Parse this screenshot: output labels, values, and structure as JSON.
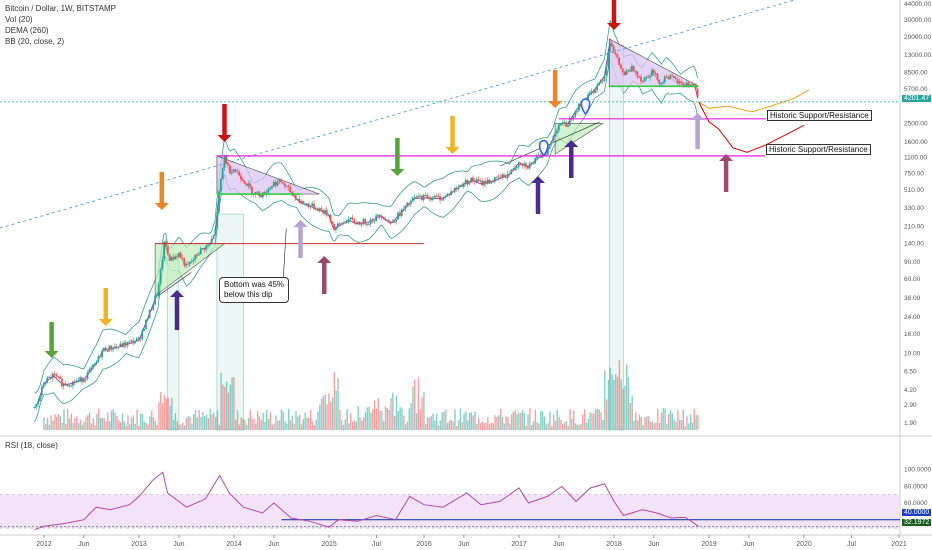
{
  "legend": {
    "title": "Bitcoin / Dollar, 1W, BITSTAMP",
    "vol": "Vol (20)",
    "dema": "DEMA (260)",
    "bb": "BB (20, close, 2)",
    "rsi": "RSI (18, close)"
  },
  "annotations": {
    "support1": "Historic Support/Resistance",
    "support2": "Historic Support/Resistance",
    "bottom_note_line1": "Bottom was 45%",
    "bottom_note_line2": "below this dip"
  },
  "price_badge": "4201.47",
  "rsi_badges": {
    "line": "40.0000",
    "current": "32.1972"
  },
  "colors": {
    "up": "#26a69a",
    "down": "#ef5350",
    "bb": "#3a9c8a",
    "dema": "#9c27b0",
    "magenta": "#e91ee6",
    "green_line": "#2ecc40",
    "red_line": "#d32f2f",
    "trend": "#4a8fd0",
    "orange_proj": "#f0a020",
    "red_proj": "#e00000",
    "rsi_line": "#b04aa6",
    "rsi_band": "#f0dcf7",
    "arrow_green": "#55a33b",
    "arrow_yellow": "#f0b323",
    "arrow_orange": "#e8862a",
    "arrow_red": "#c91313",
    "arrow_lav": "#b5a3d6",
    "arrow_purple": "#4a2c8c",
    "arrow_maroon": "#9a4a6e"
  },
  "chart_data": {
    "type": "candlestick",
    "title": "Bitcoin / Dollar, 1W, BITSTAMP",
    "scale": "log",
    "ylim": [
      1.6,
      44000
    ],
    "y_ticks": [
      "44000.00",
      "30000.00",
      "20000.00",
      "13000.00",
      "8500.00",
      "5700.00",
      "2500.00",
      "1600.00",
      "1100.00",
      "750.00",
      "510.00",
      "330.00",
      "210.00",
      "140.00",
      "90.00",
      "60.00",
      "38.00",
      "24.00",
      "16.00",
      "10.00",
      "6.50",
      "4.20",
      "2.90",
      "1.90"
    ],
    "x_ticks": [
      {
        "label": "2012",
        "t": 2012.0
      },
      {
        "label": "Jun",
        "t": 2012.42
      },
      {
        "label": "2013",
        "t": 2013.0
      },
      {
        "label": "Jun",
        "t": 2013.42
      },
      {
        "label": "2014",
        "t": 2014.0
      },
      {
        "label": "Jun",
        "t": 2014.42
      },
      {
        "label": "2015",
        "t": 2015.0
      },
      {
        "label": "Jul",
        "t": 2015.5
      },
      {
        "label": "2016",
        "t": 2016.0
      },
      {
        "label": "Jun",
        "t": 2016.42
      },
      {
        "label": "2017",
        "t": 2017.0
      },
      {
        "label": "Jun",
        "t": 2017.42
      },
      {
        "label": "2018",
        "t": 2018.0
      },
      {
        "label": "Jun",
        "t": 2018.42
      },
      {
        "label": "2019",
        "t": 2019.0
      },
      {
        "label": "Jun",
        "t": 2019.42
      },
      {
        "label": "2020",
        "t": 2020.0
      },
      {
        "label": "Jul",
        "t": 2020.5
      },
      {
        "label": "2021",
        "t": 2021.0
      }
    ],
    "price_path": [
      [
        2011.68,
        10
      ],
      [
        2011.75,
        6.5
      ],
      [
        2011.8,
        4.5
      ],
      [
        2011.87,
        2.5
      ],
      [
        2011.93,
        3
      ],
      [
        2012.0,
        5
      ],
      [
        2012.1,
        6
      ],
      [
        2012.2,
        4.8
      ],
      [
        2012.3,
        5
      ],
      [
        2012.42,
        5.5
      ],
      [
        2012.55,
        8
      ],
      [
        2012.62,
        11
      ],
      [
        2012.7,
        11.5
      ],
      [
        2012.8,
        12
      ],
      [
        2012.9,
        13
      ],
      [
        2013.0,
        14
      ],
      [
        2013.1,
        25
      ],
      [
        2013.2,
        45
      ],
      [
        2013.27,
        150
      ],
      [
        2013.3,
        110
      ],
      [
        2013.33,
        95
      ],
      [
        2013.42,
        110
      ],
      [
        2013.5,
        80
      ],
      [
        2013.55,
        90
      ],
      [
        2013.65,
        120
      ],
      [
        2013.75,
        140
      ],
      [
        2013.8,
        180
      ],
      [
        2013.84,
        450
      ],
      [
        2013.9,
        1150
      ],
      [
        2013.95,
        800
      ],
      [
        2014.0,
        850
      ],
      [
        2014.1,
        650
      ],
      [
        2014.2,
        480
      ],
      [
        2014.3,
        450
      ],
      [
        2014.42,
        600
      ],
      [
        2014.5,
        620
      ],
      [
        2014.6,
        480
      ],
      [
        2014.7,
        380
      ],
      [
        2014.8,
        350
      ],
      [
        2014.9,
        320
      ],
      [
        2015.0,
        280
      ],
      [
        2015.05,
        200
      ],
      [
        2015.2,
        250
      ],
      [
        2015.3,
        230
      ],
      [
        2015.42,
        240
      ],
      [
        2015.55,
        280
      ],
      [
        2015.65,
        230
      ],
      [
        2015.8,
        330
      ],
      [
        2015.9,
        420
      ],
      [
        2016.0,
        430
      ],
      [
        2016.2,
        420
      ],
      [
        2016.42,
        600
      ],
      [
        2016.5,
        650
      ],
      [
        2016.6,
        600
      ],
      [
        2016.75,
        650
      ],
      [
        2016.9,
        750
      ],
      [
        2017.0,
        1000
      ],
      [
        2017.1,
        900
      ],
      [
        2017.2,
        1100
      ],
      [
        2017.3,
        1300
      ],
      [
        2017.42,
        2500
      ],
      [
        2017.5,
        2400
      ],
      [
        2017.6,
        3500
      ],
      [
        2017.7,
        4500
      ],
      [
        2017.8,
        5800
      ],
      [
        2017.9,
        8000
      ],
      [
        2017.96,
        19000
      ],
      [
        2018.0,
        14000
      ],
      [
        2018.1,
        8000
      ],
      [
        2018.2,
        9500
      ],
      [
        2018.3,
        7000
      ],
      [
        2018.4,
        8800
      ],
      [
        2018.5,
        6500
      ],
      [
        2018.55,
        8000
      ],
      [
        2018.7,
        6500
      ],
      [
        2018.85,
        6400
      ],
      [
        2018.89,
        4200
      ]
    ],
    "rsi_path": [
      [
        2011.9,
        28
      ],
      [
        2012.0,
        32
      ],
      [
        2012.2,
        35
      ],
      [
        2012.42,
        40
      ],
      [
        2012.55,
        55
      ],
      [
        2012.7,
        52
      ],
      [
        2012.9,
        58
      ],
      [
        2013.0,
        68
      ],
      [
        2013.15,
        88
      ],
      [
        2013.25,
        97
      ],
      [
        2013.3,
        72
      ],
      [
        2013.5,
        55
      ],
      [
        2013.7,
        65
      ],
      [
        2013.85,
        93
      ],
      [
        2013.95,
        72
      ],
      [
        2014.1,
        55
      ],
      [
        2014.3,
        48
      ],
      [
        2014.42,
        60
      ],
      [
        2014.6,
        42
      ],
      [
        2014.8,
        38
      ],
      [
        2015.0,
        31
      ],
      [
        2015.1,
        40
      ],
      [
        2015.3,
        38
      ],
      [
        2015.5,
        45
      ],
      [
        2015.7,
        40
      ],
      [
        2015.85,
        68
      ],
      [
        2016.0,
        58
      ],
      [
        2016.2,
        55
      ],
      [
        2016.45,
        72
      ],
      [
        2016.6,
        58
      ],
      [
        2016.8,
        62
      ],
      [
        2017.0,
        78
      ],
      [
        2017.1,
        60
      ],
      [
        2017.3,
        68
      ],
      [
        2017.45,
        80
      ],
      [
        2017.6,
        62
      ],
      [
        2017.75,
        78
      ],
      [
        2017.9,
        83
      ],
      [
        2018.0,
        62
      ],
      [
        2018.1,
        45
      ],
      [
        2018.3,
        52
      ],
      [
        2018.45,
        48
      ],
      [
        2018.6,
        42
      ],
      [
        2018.75,
        43
      ],
      [
        2018.89,
        32
      ]
    ],
    "rsi_ylim": [
      30,
      100
    ],
    "rsi_ticks": [
      "100.0000",
      "80.0000",
      "60.0000"
    ],
    "projection_orange": [
      [
        2018.89,
        4200
      ],
      [
        2019.0,
        3600
      ],
      [
        2019.2,
        3800
      ],
      [
        2019.45,
        3300
      ],
      [
        2019.65,
        3800
      ],
      [
        2019.9,
        4600
      ],
      [
        2020.05,
        5600
      ]
    ],
    "projection_red": [
      [
        2018.89,
        4200
      ],
      [
        2019.0,
        2600
      ],
      [
        2019.1,
        2200
      ],
      [
        2019.25,
        1400
      ],
      [
        2019.4,
        1250
      ],
      [
        2019.6,
        1500
      ],
      [
        2019.85,
        2000
      ],
      [
        2020.0,
        2400
      ]
    ]
  }
}
